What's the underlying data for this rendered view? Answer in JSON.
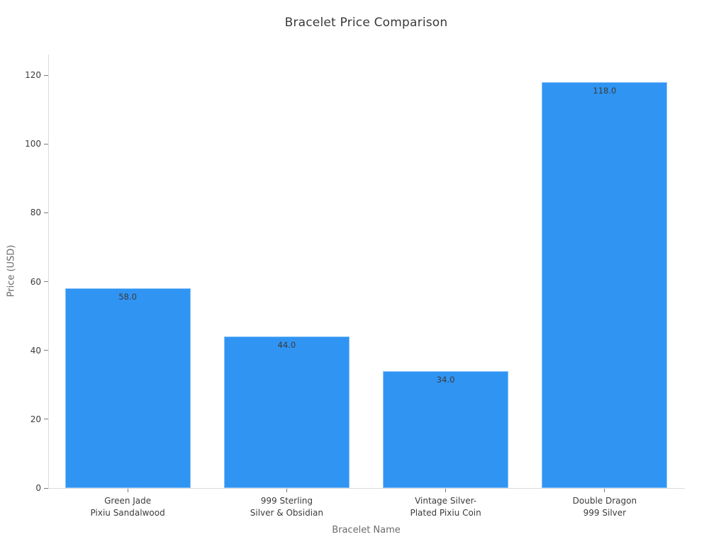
{
  "chart": {
    "title": "Bracelet Price Comparison",
    "xlabel": "Bracelet Name",
    "ylabel": "Price (USD)"
  },
  "chart_data": {
    "type": "bar",
    "title": "Bracelet Price Comparison",
    "xlabel": "Bracelet Name",
    "ylabel": "Price (USD)",
    "categories": [
      "Green Jade\nPixiu Sandalwood",
      "999 Sterling\nSilver & Obsidian",
      "Vintage Silver-\nPlated Pixiu Coin",
      "Double Dragon\n999 Silver"
    ],
    "values": [
      58.0,
      44.0,
      34.0,
      118.0
    ],
    "value_labels": [
      "58.0",
      "44.0",
      "34.0",
      "118.0"
    ],
    "yticks": [
      0,
      20,
      40,
      60,
      80,
      100,
      120
    ],
    "ylim": [
      0,
      126
    ],
    "bar_color": "#3094f3",
    "bar_edge_color": "#85c1f7",
    "grid": false,
    "legend": false,
    "value_label_position": "inside-top"
  }
}
